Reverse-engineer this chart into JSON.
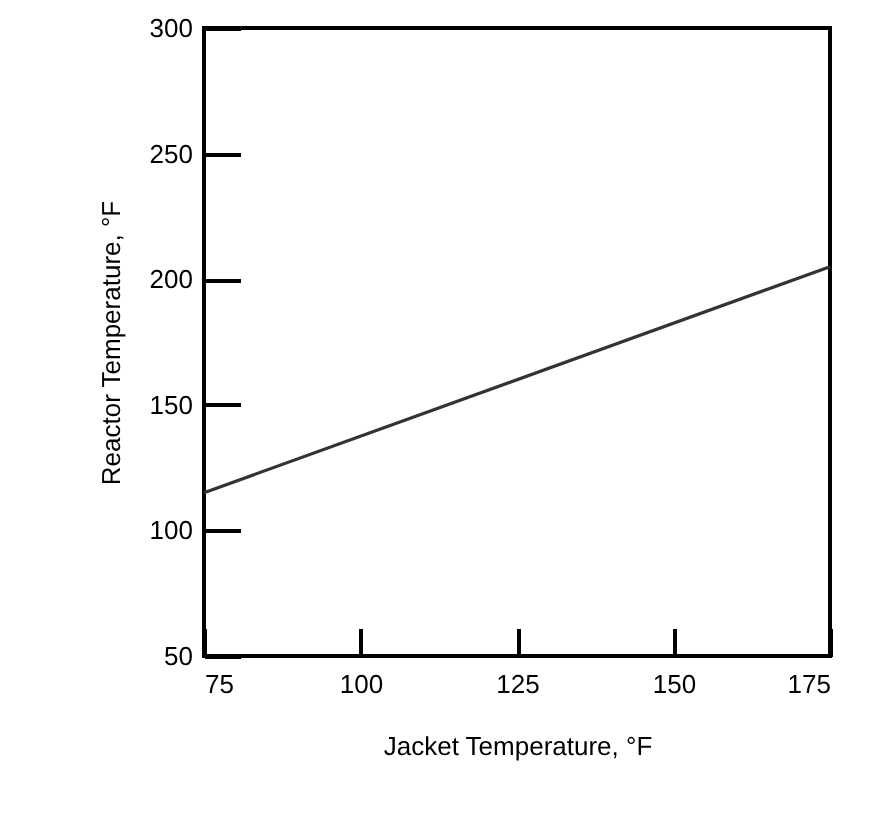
{
  "chart_data": {
    "type": "line",
    "xlabel": "Jacket Temperature, °F",
    "ylabel": "Reactor Temperature, °F",
    "x": [
      75,
      175
    ],
    "series": [
      {
        "color": "#333333",
        "values": [
          115,
          205
        ]
      }
    ],
    "xlim": [
      75,
      175
    ],
    "xticks": [
      75,
      100,
      125,
      150,
      175
    ],
    "ylim": [
      50,
      300
    ],
    "yticks": [
      50,
      100,
      150,
      200,
      250,
      300
    ],
    "grid": false,
    "marker": "none",
    "line_style": "solid"
  }
}
